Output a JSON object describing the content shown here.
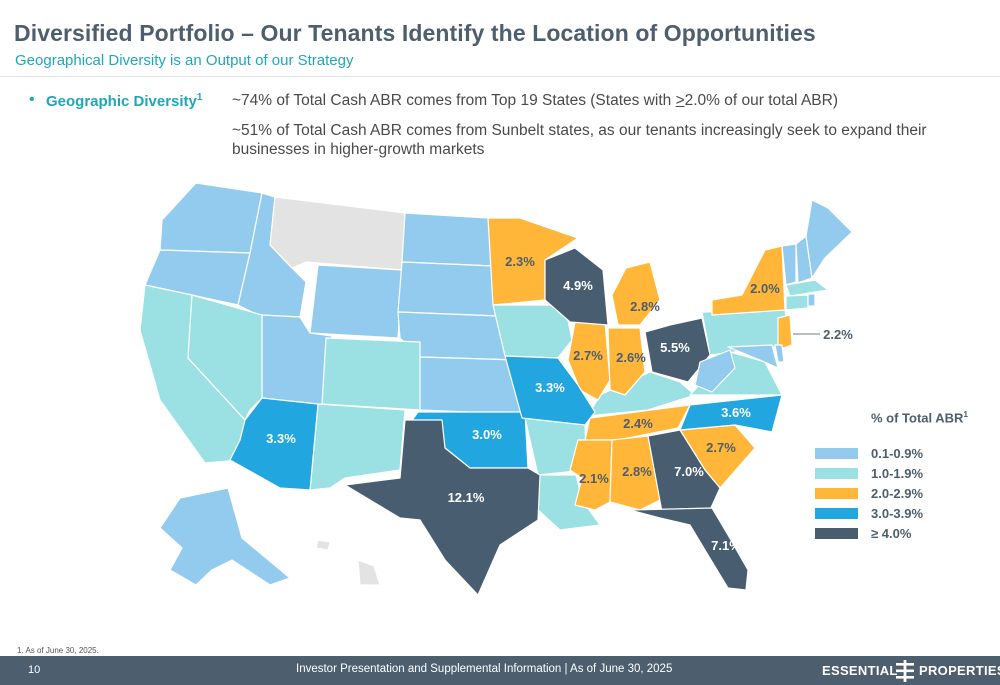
{
  "header": {
    "title": "Diversified Portfolio – Our Tenants Identify the Location of Opportunities",
    "subtitle": "Geographical Diversity is an Output of our Strategy"
  },
  "bullet": {
    "label": "Geographic Diversity",
    "label_sup": "1",
    "line1_pre": "~74% of Total Cash ABR comes from Top 19 States (States with ",
    "line1_underlined": ">",
    "line1_post": "2.0% of our total ABR)",
    "line2": "~51% of Total Cash ABR comes from Sunbelt states, as our tenants increasingly seek to expand their businesses in higher-growth markets"
  },
  "colors": {
    "tier_0": "#e3e3e3",
    "tier_1": "#93cbee",
    "tier_2": "#9be0e2",
    "tier_3": "#ffb639",
    "tier_4": "#22a6df",
    "tier_5": "#485e70",
    "label_dark": "#4d5e6e",
    "label_light": "#ffffff"
  },
  "map_labels": {
    "minnesota": "2.3%",
    "wisconsin": "4.9%",
    "michigan": "2.8%",
    "new_york": "2.0%",
    "new_jersey": "2.2%",
    "ohio": "5.5%",
    "illinois": "2.7%",
    "indiana": "2.6%",
    "missouri": "3.3%",
    "arizona": "3.3%",
    "oklahoma": "3.0%",
    "north_carolina": "3.6%",
    "tennessee": "2.4%",
    "south_carolina": "2.7%",
    "mississippi": "2.1%",
    "alabama": "2.8%",
    "georgia": "7.0%",
    "texas": "12.1%",
    "florida": "7.1%"
  },
  "legend": {
    "title": "% of Total ABR",
    "title_sup": "1",
    "items": [
      {
        "label": "0.1-0.9%",
        "color": "#93cbee"
      },
      {
        "label": "1.0-1.9%",
        "color": "#9be0e2"
      },
      {
        "label": "2.0-2.9%",
        "color": "#ffb639"
      },
      {
        "label": "3.0-3.9%",
        "color": "#22a6df"
      },
      {
        "label": "≥ 4.0%",
        "color": "#485e70"
      }
    ]
  },
  "footnote": "1. As of June 30, 2025.",
  "footer": {
    "page_number": "10",
    "text": "Investor Presentation and Supplemental Information | As of June 30, 2025",
    "logo_left": "ESSENTIAL",
    "logo_right": "PROPERTIES"
  }
}
